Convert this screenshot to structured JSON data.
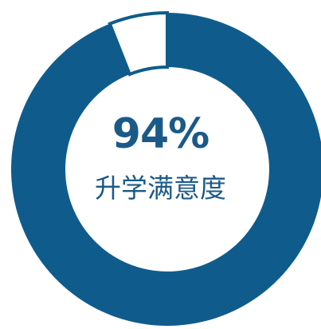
{
  "chart_data": {
    "type": "pie",
    "style": "donut",
    "values": [
      94,
      6
    ],
    "center_value": "94%",
    "center_caption": "升学满意度",
    "colors": {
      "filled": "#0f5c8c",
      "remaining": "#ffffff",
      "remaining_outline": "#0f5c8c",
      "text": "#1a5a88",
      "background": "#ffffff"
    }
  }
}
